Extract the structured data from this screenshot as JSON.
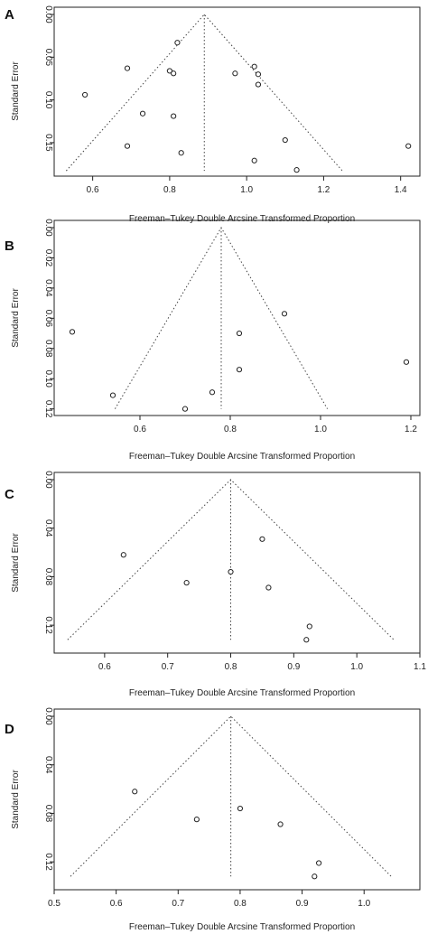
{
  "chart_data": [
    {
      "panel_label": "A",
      "type": "scatter",
      "xlabel": "Freeman–Tukey Double Arcsine Transformed Proportion",
      "ylabel": "Standard Error",
      "xlim": [
        0.5,
        1.45
      ],
      "ylim": [
        0,
        0.185
      ],
      "y_reversed": true,
      "xticks": [
        0.6,
        0.8,
        1.0,
        1.2,
        1.4
      ],
      "xtick_labels": [
        "0.6",
        "0.8",
        "1.0",
        "1.2",
        "1.4"
      ],
      "yticks": [
        0,
        0.05,
        0.1,
        0.15
      ],
      "ytick_labels": [
        "0.00",
        "0.05",
        "0.10",
        "0.15"
      ],
      "pooled_estimate": 0.89,
      "funnel_max_se": 0.183,
      "points": [
        {
          "x": 0.82,
          "y": 0.033
        },
        {
          "x": 0.69,
          "y": 0.063
        },
        {
          "x": 0.8,
          "y": 0.066
        },
        {
          "x": 0.81,
          "y": 0.069
        },
        {
          "x": 0.58,
          "y": 0.094
        },
        {
          "x": 0.73,
          "y": 0.116
        },
        {
          "x": 0.81,
          "y": 0.119
        },
        {
          "x": 0.69,
          "y": 0.154
        },
        {
          "x": 0.83,
          "y": 0.162
        },
        {
          "x": 1.02,
          "y": 0.061
        },
        {
          "x": 1.03,
          "y": 0.07
        },
        {
          "x": 0.97,
          "y": 0.069
        },
        {
          "x": 1.03,
          "y": 0.082
        },
        {
          "x": 1.1,
          "y": 0.147
        },
        {
          "x": 1.02,
          "y": 0.171
        },
        {
          "x": 1.13,
          "y": 0.182
        },
        {
          "x": 1.42,
          "y": 0.154
        }
      ]
    },
    {
      "panel_label": "B",
      "type": "scatter",
      "xlabel": "Freeman–Tukey Double Arcsine Transformed Proportion",
      "ylabel": "Standard Error",
      "xlim": [
        0.41,
        1.22
      ],
      "ylim": [
        0,
        0.122
      ],
      "y_reversed": true,
      "xticks": [
        0.6,
        0.8,
        1.0,
        1.2
      ],
      "xtick_labels": [
        "0.6",
        "0.8",
        "1.0",
        "1.2"
      ],
      "yticks": [
        0,
        0.02,
        0.04,
        0.06,
        0.08,
        0.1,
        0.12
      ],
      "ytick_labels": [
        "0.00",
        "0.02",
        "0.04",
        "0.06",
        "0.08",
        "0.10",
        "0.12"
      ],
      "pooled_estimate": 0.78,
      "funnel_max_se": 0.12,
      "points": [
        {
          "x": 0.45,
          "y": 0.069
        },
        {
          "x": 0.54,
          "y": 0.111
        },
        {
          "x": 0.7,
          "y": 0.12
        },
        {
          "x": 0.76,
          "y": 0.109
        },
        {
          "x": 0.82,
          "y": 0.07
        },
        {
          "x": 0.82,
          "y": 0.094
        },
        {
          "x": 0.92,
          "y": 0.057
        },
        {
          "x": 1.19,
          "y": 0.089
        }
      ]
    },
    {
      "panel_label": "C",
      "type": "scatter",
      "xlabel": "Freeman–Tukey Double Arcsine Transformed Proportion",
      "ylabel": "Standard Error",
      "xlim": [
        0.52,
        1.1
      ],
      "ylim": [
        0,
        0.14
      ],
      "y_reversed": true,
      "xticks": [
        0.6,
        0.7,
        0.8,
        0.9,
        1.0,
        1.1
      ],
      "xtick_labels": [
        "0.6",
        "0.7",
        "0.8",
        "0.9",
        "1.0",
        "1.1"
      ],
      "yticks": [
        0,
        0.04,
        0.08,
        0.12
      ],
      "ytick_labels": [
        "0.00",
        "0.04",
        "0.08",
        "0.12"
      ],
      "pooled_estimate": 0.8,
      "funnel_max_se": 0.132,
      "points": [
        {
          "x": 0.63,
          "y": 0.062
        },
        {
          "x": 0.73,
          "y": 0.085
        },
        {
          "x": 0.8,
          "y": 0.076
        },
        {
          "x": 0.86,
          "y": 0.089
        },
        {
          "x": 0.85,
          "y": 0.049
        },
        {
          "x": 0.925,
          "y": 0.121
        },
        {
          "x": 0.92,
          "y": 0.132
        }
      ]
    },
    {
      "panel_label": "D",
      "type": "scatter",
      "xlabel": "Freeman–Tukey Double Arcsine Transformed Proportion",
      "ylabel": "Standard Error",
      "xlim": [
        0.5,
        1.09
      ],
      "ylim": [
        0,
        0.14
      ],
      "y_reversed": true,
      "xticks": [
        0.5,
        0.6,
        0.7,
        0.8,
        0.9,
        1.0
      ],
      "xtick_labels": [
        "0.5",
        "0.6",
        "0.7",
        "0.8",
        "0.9",
        "1.0"
      ],
      "yticks": [
        0,
        0.04,
        0.08,
        0.12
      ],
      "ytick_labels": [
        "0.00",
        "0.04",
        "0.08",
        "0.12"
      ],
      "pooled_estimate": 0.785,
      "funnel_max_se": 0.132,
      "points": [
        {
          "x": 0.63,
          "y": 0.062
        },
        {
          "x": 0.73,
          "y": 0.085
        },
        {
          "x": 0.8,
          "y": 0.076
        },
        {
          "x": 0.865,
          "y": 0.089
        },
        {
          "x": 0.927,
          "y": 0.121
        },
        {
          "x": 0.92,
          "y": 0.132
        }
      ]
    }
  ]
}
